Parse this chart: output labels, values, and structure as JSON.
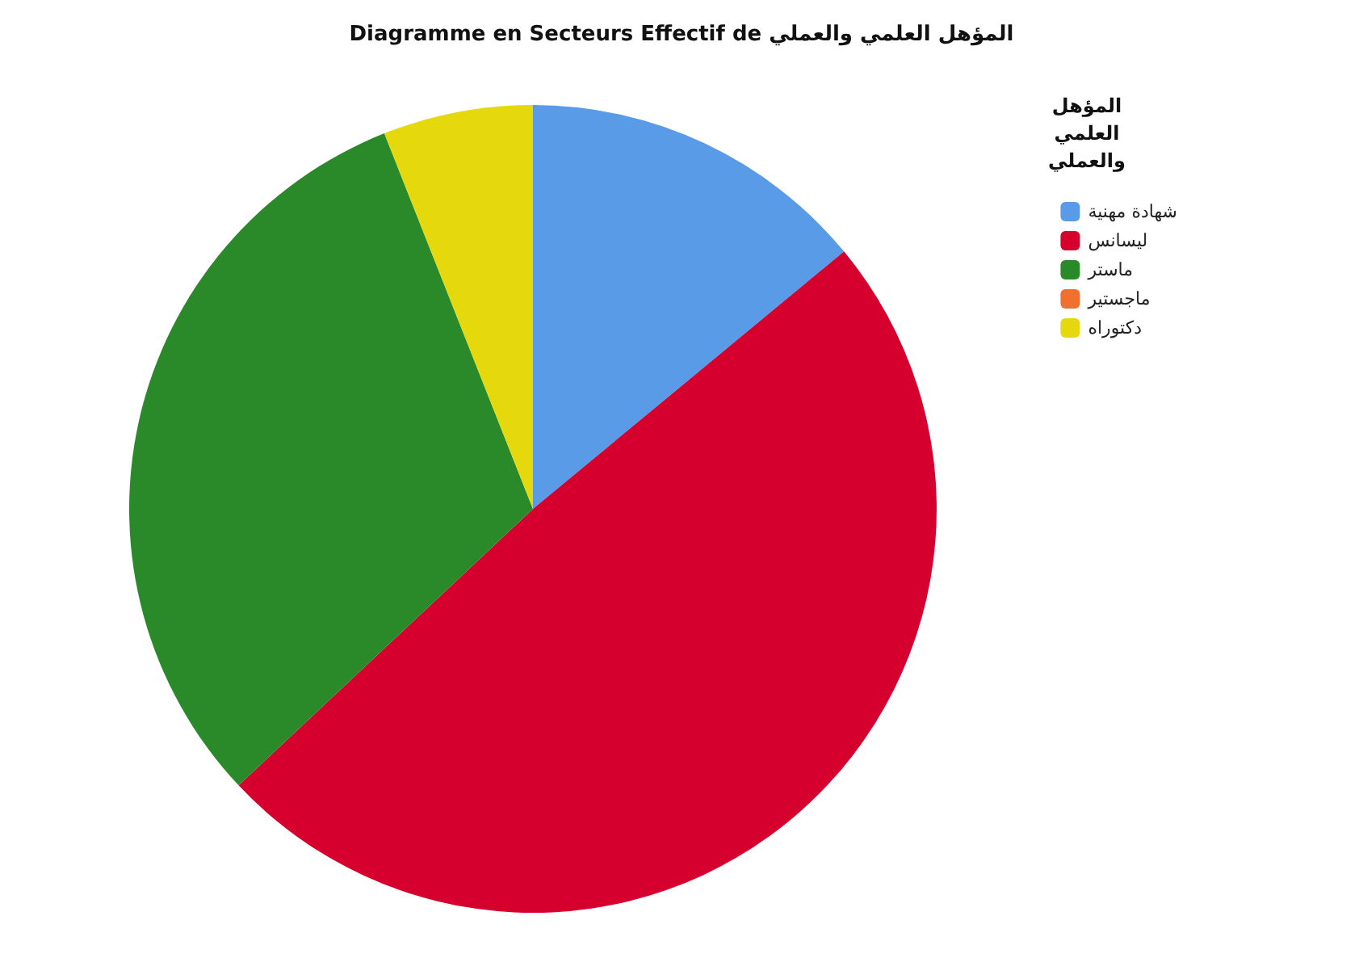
{
  "chart_data": {
    "type": "pie",
    "title": "Diagramme en Secteurs Effectif de المؤهل العلمي والعملي",
    "legend_title": "المؤهل العلمي والعملي",
    "categories": [
      "شهادة مهنية",
      "ليسانس",
      "ماستر",
      "ماجستير",
      "دكتوراه"
    ],
    "values": [
      14,
      49,
      31,
      0,
      6
    ],
    "colors": [
      "#5a9be8",
      "#d6002f",
      "#2a8a2a",
      "#f07030",
      "#e5d80c"
    ],
    "legend": "top right"
  }
}
